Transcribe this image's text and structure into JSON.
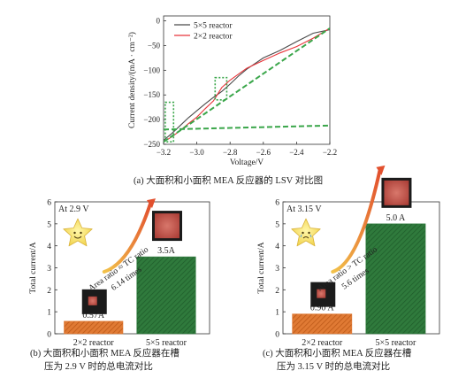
{
  "captions": {
    "a": "(a) 大面积和小面积 MEA 反应器的 LSV 对比图",
    "b_line1": "(b) 大面积和小面积 MEA 反应器在槽",
    "b_line2": "压为 2.9 V 时的总电流对比",
    "c_line1": "(c) 大面积和小面积 MEA 反应器在槽",
    "c_line2": "压为 3.15 V 时的总电流对比"
  },
  "chart_data": [
    {
      "type": "line",
      "title": "",
      "xlabel": "Voltage/V",
      "ylabel": "Current density/(mA · cm⁻²)",
      "xlim": [
        -3.2,
        -2.2
      ],
      "ylim": [
        -250,
        10
      ],
      "xticks": [
        "−3.2",
        "−3.0",
        "−2.8",
        "−2.6",
        "−2.4",
        "−2.2"
      ],
      "yticks": [
        "0",
        "−50",
        "−100",
        "−150",
        "−200",
        "−250"
      ],
      "legend": "top-left",
      "series": [
        {
          "name": "5×5 reactor",
          "color": "#4a4a4a",
          "x": [
            -3.2,
            -3.15,
            -3.1,
            -3.05,
            -3.0,
            -2.95,
            -2.9,
            -2.85,
            -2.8,
            -2.75,
            -2.7,
            -2.6,
            -2.5,
            -2.4,
            -2.3,
            -2.2
          ],
          "y": [
            -242,
            -228,
            -212,
            -196,
            -182,
            -168,
            -155,
            -143,
            -128,
            -112,
            -98,
            -75,
            -60,
            -42,
            -25,
            -18
          ]
        },
        {
          "name": "2×2 reactor",
          "color": "#e8353a",
          "x": [
            -3.2,
            -3.15,
            -3.1,
            -3.05,
            -3.0,
            -2.95,
            -2.9,
            -2.85,
            -2.8,
            -2.75,
            -2.7,
            -2.6,
            -2.5,
            -2.4,
            -2.3,
            -2.2
          ],
          "y": [
            -245,
            -235,
            -222,
            -208,
            -195,
            -178,
            -162,
            -135,
            -120,
            -108,
            -96,
            -80,
            -65,
            -52,
            -35,
            -15
          ]
        },
        {
          "name": "",
          "color": "#3aa64a",
          "dashed": true,
          "x": [
            -3.2,
            -2.2
          ],
          "y": [
            -220,
            -212
          ]
        },
        {
          "name": "",
          "color": "#3aa64a",
          "dashed": true,
          "x": [
            -3.2,
            -2.2
          ],
          "y": [
            -245,
            -15
          ]
        }
      ],
      "highlights": [
        {
          "x": [
            -3.19,
            -3.14
          ],
          "y": [
            -245,
            -165
          ]
        },
        {
          "x": [
            -2.89,
            -2.82
          ],
          "y": [
            -160,
            -115
          ]
        }
      ]
    },
    {
      "type": "bar",
      "title": "At 2.9 V",
      "xlabel": "",
      "ylabel": "Total current/A",
      "ylim": [
        0,
        6
      ],
      "yticks": [
        "0",
        "1",
        "2",
        "3",
        "4",
        "5",
        "6"
      ],
      "categories": [
        "2×2 reactor",
        "5×5 reactor"
      ],
      "values": [
        0.57,
        3.5
      ],
      "value_labels": [
        "0.57A",
        "3.5A"
      ],
      "colors": [
        "#e07a34",
        "#2f7a3c"
      ],
      "annotation_line1": "Area ratio ≈ TC ratio",
      "annotation_line2": "6.14 times",
      "icon": "star-smiling-icon"
    },
    {
      "type": "bar",
      "title": "At 3.15 V",
      "xlabel": "",
      "ylabel": "Total current/A",
      "ylim": [
        0,
        6
      ],
      "yticks": [
        "0",
        "1",
        "2",
        "3",
        "4",
        "5",
        "6"
      ],
      "categories": [
        "2×2 reactor",
        "5×5 reactor"
      ],
      "values": [
        0.9,
        5.0
      ],
      "value_labels": [
        "0.90 A",
        "5.0 A"
      ],
      "colors": [
        "#e07a34",
        "#2f7a3c"
      ],
      "annotation_line1": "Area ratio > TC ratio",
      "annotation_line2": "5.6 times",
      "icon": "star-crying-icon"
    }
  ]
}
